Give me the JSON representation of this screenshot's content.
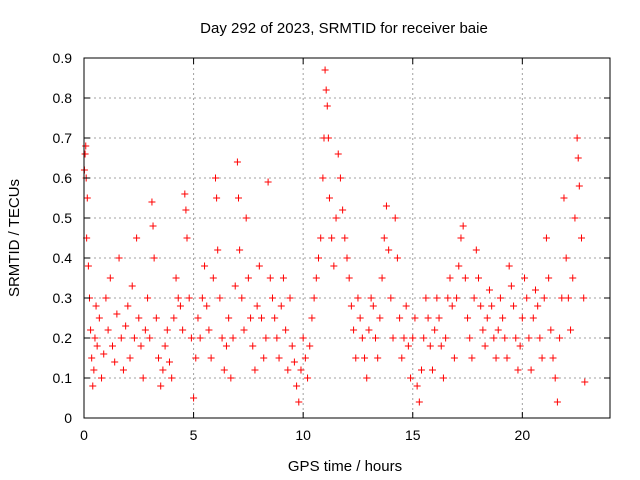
{
  "chart_data": {
    "type": "scatter",
    "title": "Day 292 of 2023, SRMTID for receiver baie",
    "xlabel": "GPS time / hours",
    "ylabel": "SRMTID / TECUs",
    "xlim": [
      0,
      24
    ],
    "ylim": [
      0,
      0.9
    ],
    "xticks": [
      0,
      5,
      10,
      15,
      20
    ],
    "yticks": [
      0,
      0.1,
      0.2,
      0.3,
      0.4,
      0.5,
      0.6,
      0.7,
      0.8,
      0.9
    ],
    "xtick_labels": [
      "0",
      "5",
      "10",
      "15",
      "20"
    ],
    "ytick_labels": [
      "0",
      "0.1",
      "0.2",
      "0.3",
      "0.4",
      "0.5",
      "0.6",
      "0.7",
      "0.8",
      "0.9"
    ],
    "grid": true,
    "marker": "+",
    "marker_color": "#ff0000",
    "series": [
      {
        "name": "SRMTID",
        "points": [
          [
            0.02,
            0.62
          ],
          [
            0.05,
            0.66
          ],
          [
            0.08,
            0.68
          ],
          [
            0.1,
            0.6
          ],
          [
            0.12,
            0.45
          ],
          [
            0.15,
            0.55
          ],
          [
            0.2,
            0.38
          ],
          [
            0.25,
            0.3
          ],
          [
            0.3,
            0.22
          ],
          [
            0.35,
            0.15
          ],
          [
            0.4,
            0.08
          ],
          [
            0.45,
            0.12
          ],
          [
            0.5,
            0.2
          ],
          [
            0.55,
            0.28
          ],
          [
            0.6,
            0.18
          ],
          [
            0.7,
            0.25
          ],
          [
            0.8,
            0.1
          ],
          [
            0.9,
            0.16
          ],
          [
            1.0,
            0.3
          ],
          [
            1.1,
            0.22
          ],
          [
            1.2,
            0.35
          ],
          [
            1.3,
            0.18
          ],
          [
            1.4,
            0.14
          ],
          [
            1.5,
            0.26
          ],
          [
            1.6,
            0.4
          ],
          [
            1.7,
            0.2
          ],
          [
            1.8,
            0.12
          ],
          [
            1.9,
            0.23
          ],
          [
            2.0,
            0.28
          ],
          [
            2.1,
            0.15
          ],
          [
            2.2,
            0.33
          ],
          [
            2.3,
            0.2
          ],
          [
            2.4,
            0.45
          ],
          [
            2.5,
            0.25
          ],
          [
            2.6,
            0.18
          ],
          [
            2.7,
            0.1
          ],
          [
            2.8,
            0.22
          ],
          [
            2.9,
            0.3
          ],
          [
            3.0,
            0.2
          ],
          [
            3.1,
            0.54
          ],
          [
            3.15,
            0.48
          ],
          [
            3.2,
            0.4
          ],
          [
            3.3,
            0.25
          ],
          [
            3.4,
            0.15
          ],
          [
            3.5,
            0.08
          ],
          [
            3.6,
            0.12
          ],
          [
            3.7,
            0.18
          ],
          [
            3.8,
            0.22
          ],
          [
            3.9,
            0.14
          ],
          [
            4.0,
            0.1
          ],
          [
            4.1,
            0.25
          ],
          [
            4.2,
            0.35
          ],
          [
            4.3,
            0.3
          ],
          [
            4.4,
            0.28
          ],
          [
            4.5,
            0.22
          ],
          [
            4.6,
            0.56
          ],
          [
            4.65,
            0.52
          ],
          [
            4.7,
            0.45
          ],
          [
            4.8,
            0.3
          ],
          [
            4.9,
            0.2
          ],
          [
            5.0,
            0.05
          ],
          [
            5.1,
            0.15
          ],
          [
            5.2,
            0.25
          ],
          [
            5.3,
            0.2
          ],
          [
            5.4,
            0.3
          ],
          [
            5.5,
            0.38
          ],
          [
            5.6,
            0.28
          ],
          [
            5.7,
            0.22
          ],
          [
            5.8,
            0.15
          ],
          [
            5.9,
            0.35
          ],
          [
            6.0,
            0.6
          ],
          [
            6.05,
            0.55
          ],
          [
            6.1,
            0.42
          ],
          [
            6.2,
            0.3
          ],
          [
            6.3,
            0.2
          ],
          [
            6.4,
            0.12
          ],
          [
            6.5,
            0.18
          ],
          [
            6.6,
            0.25
          ],
          [
            6.7,
            0.1
          ],
          [
            6.8,
            0.2
          ],
          [
            6.9,
            0.33
          ],
          [
            7.0,
            0.64
          ],
          [
            7.05,
            0.55
          ],
          [
            7.1,
            0.42
          ],
          [
            7.2,
            0.3
          ],
          [
            7.3,
            0.22
          ],
          [
            7.4,
            0.5
          ],
          [
            7.5,
            0.35
          ],
          [
            7.6,
            0.25
          ],
          [
            7.7,
            0.18
          ],
          [
            7.8,
            0.12
          ],
          [
            7.9,
            0.28
          ],
          [
            8.0,
            0.38
          ],
          [
            8.1,
            0.25
          ],
          [
            8.2,
            0.15
          ],
          [
            8.3,
            0.2
          ],
          [
            8.4,
            0.59
          ],
          [
            8.5,
            0.35
          ],
          [
            8.6,
            0.3
          ],
          [
            8.7,
            0.25
          ],
          [
            8.8,
            0.2
          ],
          [
            8.9,
            0.15
          ],
          [
            9.0,
            0.28
          ],
          [
            9.1,
            0.35
          ],
          [
            9.2,
            0.22
          ],
          [
            9.3,
            0.12
          ],
          [
            9.4,
            0.3
          ],
          [
            9.5,
            0.18
          ],
          [
            9.6,
            0.14
          ],
          [
            9.7,
            0.08
          ],
          [
            9.8,
            0.04
          ],
          [
            9.9,
            0.12
          ],
          [
            10.0,
            0.2
          ],
          [
            10.1,
            0.15
          ],
          [
            10.2,
            0.1
          ],
          [
            10.3,
            0.18
          ],
          [
            10.4,
            0.25
          ],
          [
            10.5,
            0.3
          ],
          [
            10.6,
            0.35
          ],
          [
            10.7,
            0.4
          ],
          [
            10.8,
            0.45
          ],
          [
            10.9,
            0.6
          ],
          [
            10.95,
            0.7
          ],
          [
            11.0,
            0.87
          ],
          [
            11.05,
            0.82
          ],
          [
            11.1,
            0.78
          ],
          [
            11.15,
            0.7
          ],
          [
            11.2,
            0.55
          ],
          [
            11.3,
            0.45
          ],
          [
            11.4,
            0.38
          ],
          [
            11.5,
            0.5
          ],
          [
            11.6,
            0.66
          ],
          [
            11.7,
            0.6
          ],
          [
            11.8,
            0.52
          ],
          [
            11.9,
            0.45
          ],
          [
            12.0,
            0.4
          ],
          [
            12.1,
            0.35
          ],
          [
            12.2,
            0.28
          ],
          [
            12.3,
            0.22
          ],
          [
            12.4,
            0.15
          ],
          [
            12.5,
            0.3
          ],
          [
            12.6,
            0.25
          ],
          [
            12.7,
            0.2
          ],
          [
            12.8,
            0.15
          ],
          [
            12.9,
            0.1
          ],
          [
            13.0,
            0.22
          ],
          [
            13.1,
            0.3
          ],
          [
            13.2,
            0.28
          ],
          [
            13.3,
            0.2
          ],
          [
            13.4,
            0.15
          ],
          [
            13.5,
            0.25
          ],
          [
            13.6,
            0.35
          ],
          [
            13.7,
            0.45
          ],
          [
            13.8,
            0.53
          ],
          [
            13.9,
            0.42
          ],
          [
            14.0,
            0.3
          ],
          [
            14.1,
            0.2
          ],
          [
            14.2,
            0.5
          ],
          [
            14.3,
            0.4
          ],
          [
            14.4,
            0.25
          ],
          [
            14.5,
            0.15
          ],
          [
            14.6,
            0.2
          ],
          [
            14.7,
            0.28
          ],
          [
            14.8,
            0.18
          ],
          [
            14.9,
            0.1
          ],
          [
            15.0,
            0.2
          ],
          [
            15.1,
            0.25
          ],
          [
            15.2,
            0.08
          ],
          [
            15.3,
            0.04
          ],
          [
            15.4,
            0.12
          ],
          [
            15.5,
            0.2
          ],
          [
            15.6,
            0.3
          ],
          [
            15.7,
            0.25
          ],
          [
            15.8,
            0.18
          ],
          [
            15.9,
            0.12
          ],
          [
            16.0,
            0.22
          ],
          [
            16.1,
            0.3
          ],
          [
            16.2,
            0.25
          ],
          [
            16.3,
            0.18
          ],
          [
            16.4,
            0.1
          ],
          [
            16.5,
            0.2
          ],
          [
            16.6,
            0.3
          ],
          [
            16.7,
            0.35
          ],
          [
            16.8,
            0.28
          ],
          [
            16.9,
            0.15
          ],
          [
            17.0,
            0.3
          ],
          [
            17.1,
            0.38
          ],
          [
            17.2,
            0.45
          ],
          [
            17.3,
            0.48
          ],
          [
            17.4,
            0.35
          ],
          [
            17.5,
            0.25
          ],
          [
            17.6,
            0.2
          ],
          [
            17.7,
            0.15
          ],
          [
            17.8,
            0.3
          ],
          [
            17.9,
            0.42
          ],
          [
            18.0,
            0.35
          ],
          [
            18.1,
            0.28
          ],
          [
            18.2,
            0.22
          ],
          [
            18.3,
            0.18
          ],
          [
            18.4,
            0.25
          ],
          [
            18.5,
            0.32
          ],
          [
            18.6,
            0.28
          ],
          [
            18.7,
            0.2
          ],
          [
            18.8,
            0.15
          ],
          [
            18.9,
            0.22
          ],
          [
            19.0,
            0.3
          ],
          [
            19.1,
            0.25
          ],
          [
            19.2,
            0.2
          ],
          [
            19.3,
            0.15
          ],
          [
            19.4,
            0.38
          ],
          [
            19.5,
            0.33
          ],
          [
            19.6,
            0.28
          ],
          [
            19.7,
            0.2
          ],
          [
            19.8,
            0.12
          ],
          [
            19.9,
            0.18
          ],
          [
            20.0,
            0.25
          ],
          [
            20.1,
            0.35
          ],
          [
            20.2,
            0.3
          ],
          [
            20.3,
            0.2
          ],
          [
            20.4,
            0.12
          ],
          [
            20.5,
            0.25
          ],
          [
            20.6,
            0.32
          ],
          [
            20.7,
            0.28
          ],
          [
            20.8,
            0.2
          ],
          [
            20.9,
            0.15
          ],
          [
            21.0,
            0.3
          ],
          [
            21.1,
            0.45
          ],
          [
            21.2,
            0.35
          ],
          [
            21.3,
            0.22
          ],
          [
            21.4,
            0.15
          ],
          [
            21.5,
            0.1
          ],
          [
            21.6,
            0.04
          ],
          [
            21.7,
            0.2
          ],
          [
            21.8,
            0.3
          ],
          [
            21.9,
            0.55
          ],
          [
            22.0,
            0.4
          ],
          [
            22.1,
            0.3
          ],
          [
            22.2,
            0.22
          ],
          [
            22.3,
            0.35
          ],
          [
            22.4,
            0.5
          ],
          [
            22.5,
            0.7
          ],
          [
            22.55,
            0.65
          ],
          [
            22.6,
            0.58
          ],
          [
            22.7,
            0.45
          ],
          [
            22.8,
            0.3
          ],
          [
            22.85,
            0.09
          ]
        ]
      }
    ]
  }
}
